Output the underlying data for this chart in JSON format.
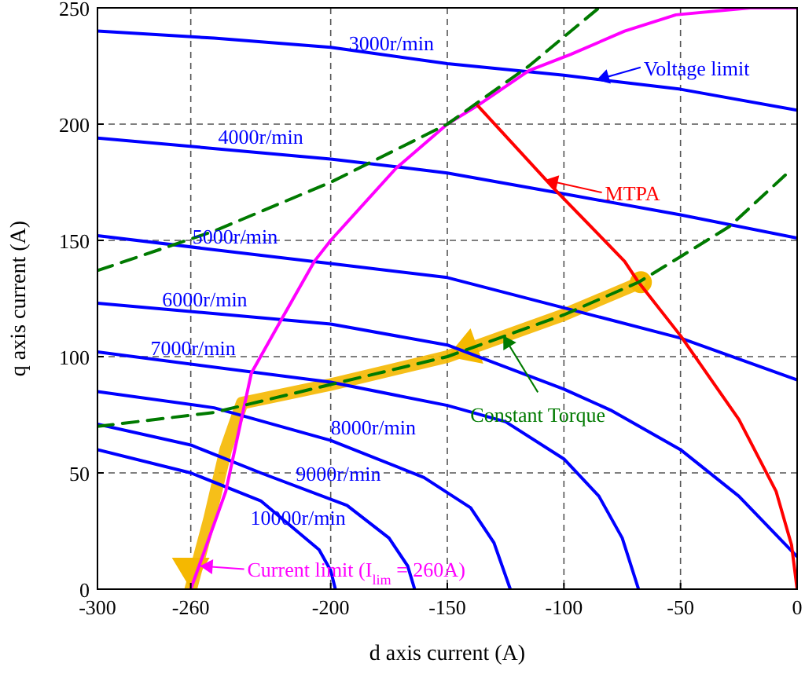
{
  "chart_data": {
    "type": "line",
    "xlabel": "d axis current (A)",
    "ylabel": "q axis current (A)",
    "xlim": [
      -300,
      0
    ],
    "ylim": [
      0,
      250
    ],
    "xticks": [
      -300,
      -260,
      -200,
      -150,
      -100,
      -50,
      0
    ],
    "yticks": [
      0,
      50,
      100,
      150,
      200,
      250
    ],
    "grid": true,
    "series": [
      {
        "color": "#0000ff",
        "x": [
          -300,
          -250,
          -200,
          -150,
          -100,
          -50,
          0
        ],
        "values": [
          240,
          237,
          233,
          226,
          221,
          215,
          206
        ]
      },
      {
        "color": "#0000ff",
        "x": [
          -300,
          -200,
          -150,
          -100,
          -50,
          0
        ],
        "values": [
          194,
          185,
          179,
          170,
          161,
          151
        ]
      },
      {
        "color": "#0000ff",
        "x": [
          -300,
          -200,
          -150,
          -100,
          -50,
          0
        ],
        "values": [
          152,
          140,
          134,
          121,
          108,
          90
        ]
      },
      {
        "color": "#0000ff",
        "x": [
          -300,
          -200,
          -150,
          -100,
          -80,
          -50,
          -25,
          0
        ],
        "values": [
          123,
          114,
          105,
          86,
          77,
          60,
          40,
          14
        ]
      },
      {
        "color": "#0000ff",
        "x": [
          -300,
          -200,
          -150,
          -125,
          -100,
          -85,
          -75,
          -68
        ],
        "values": [
          102,
          89,
          79,
          72,
          56,
          40,
          22,
          0
        ]
      },
      {
        "color": "#0000ff",
        "x": [
          -300,
          -250,
          -200,
          -160,
          -140,
          -130,
          -123
        ],
        "values": [
          85,
          78,
          64,
          48,
          35,
          20,
          0
        ]
      },
      {
        "color": "#0000ff",
        "x": [
          -300,
          -260,
          -230,
          -193,
          -175,
          -167,
          -164
        ],
        "values": [
          71,
          62,
          50,
          36,
          22,
          10,
          0
        ]
      },
      {
        "color": "#0000ff",
        "x": [
          -300,
          -260,
          -230,
          -205,
          -200,
          -198
        ],
        "values": [
          60,
          50,
          38,
          17,
          8,
          0
        ]
      },
      {
        "color": "#ff00ff",
        "x": [
          -260,
          -245,
          -234,
          -220,
          -207,
          -200,
          -172,
          -150,
          -137,
          -115,
          -97,
          -74,
          -52,
          -20,
          0
        ],
        "values": [
          0,
          42,
          93,
          118,
          141,
          150,
          181,
          200,
          208,
          223,
          230,
          240,
          247,
          250,
          250
        ]
      },
      {
        "color": "#ff0000",
        "x": [
          -137,
          -104,
          -74,
          -68,
          -50,
          -25,
          -9,
          -2.4,
          0
        ],
        "values": [
          208,
          172,
          141,
          132,
          109,
          73,
          42,
          19,
          0
        ]
      },
      {
        "color": "#007a00",
        "line_style": "dashed",
        "x": [
          -300,
          -250,
          -200,
          -150,
          -115,
          -85
        ],
        "values": [
          137,
          154,
          175,
          200,
          225,
          250
        ]
      },
      {
        "color": "#007a00",
        "line_style": "dashed",
        "x": [
          -300,
          -250,
          -200,
          -150,
          -100,
          -68,
          -50,
          -29,
          -3
        ],
        "values": [
          70,
          76,
          88,
          100,
          118,
          132,
          143,
          156,
          180
        ]
      },
      {
        "color": "#f5b800",
        "x": [
          -67,
          -100,
          -150,
          -200,
          -238,
          -245,
          -252,
          -260
        ],
        "values": [
          132,
          118,
          100,
          88,
          80,
          60,
          30,
          0
        ]
      }
    ],
    "annotations": [
      {
        "text": "3000r/min",
        "x": -174,
        "y": 229
      },
      {
        "text": "4000r/min",
        "x": -230,
        "y": 189
      },
      {
        "text": "5000r/min",
        "x": -241,
        "y": 146
      },
      {
        "text": "6000r/min",
        "x": -254,
        "y": 119
      },
      {
        "text": "7000r/min",
        "x": -259,
        "y": 98
      },
      {
        "text": "8000r/min",
        "x": -200,
        "y": 64
      },
      {
        "text": "9000r/min",
        "x": -215,
        "y": 44
      },
      {
        "text": "10000r/min",
        "x": -214,
        "y": 25
      },
      {
        "text": "Voltage limit",
        "x": -86,
        "y": 219
      },
      {
        "text": "MTPA",
        "x": -108,
        "y": 176
      },
      {
        "text": "Constant Torque",
        "x": -126,
        "y": 109
      },
      {
        "text": "Current limit (I$_{lim}$ = 260A)",
        "x": -256,
        "y": 10
      }
    ]
  }
}
